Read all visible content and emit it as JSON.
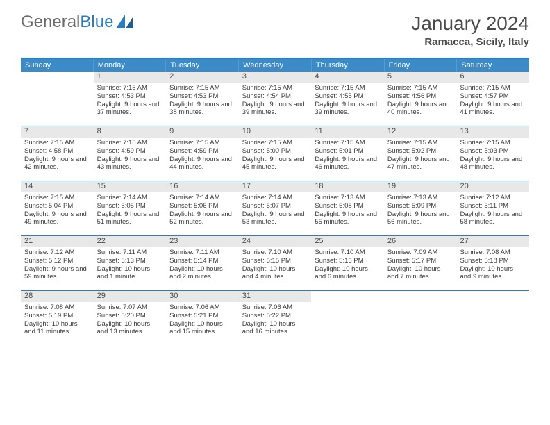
{
  "logo": {
    "text1": "General",
    "text2": "Blue"
  },
  "title": "January 2024",
  "location": "Ramacca, Sicily, Italy",
  "colors": {
    "header_band": "#3b8bc9",
    "week_divider": "#2b7bbf",
    "daynum_bg": "#e8e8e8",
    "text": "#3a3a3a",
    "title": "#4a4a4a",
    "logo_gray": "#6a6a6a",
    "logo_blue": "#2b7bbf",
    "background": "#ffffff"
  },
  "typography": {
    "month_title_pt": 28,
    "location_pt": 15,
    "weekday_pt": 11,
    "daynum_pt": 11,
    "body_pt": 9.5,
    "font_family": "Arial"
  },
  "weekdays": [
    "Sunday",
    "Monday",
    "Tuesday",
    "Wednesday",
    "Thursday",
    "Friday",
    "Saturday"
  ],
  "weeks": [
    [
      {
        "n": "",
        "sr": "",
        "ss": "",
        "dl": "",
        "empty": true
      },
      {
        "n": "1",
        "sr": "Sunrise: 7:15 AM",
        "ss": "Sunset: 4:53 PM",
        "dl": "Daylight: 9 hours and 37 minutes."
      },
      {
        "n": "2",
        "sr": "Sunrise: 7:15 AM",
        "ss": "Sunset: 4:53 PM",
        "dl": "Daylight: 9 hours and 38 minutes."
      },
      {
        "n": "3",
        "sr": "Sunrise: 7:15 AM",
        "ss": "Sunset: 4:54 PM",
        "dl": "Daylight: 9 hours and 39 minutes."
      },
      {
        "n": "4",
        "sr": "Sunrise: 7:15 AM",
        "ss": "Sunset: 4:55 PM",
        "dl": "Daylight: 9 hours and 39 minutes."
      },
      {
        "n": "5",
        "sr": "Sunrise: 7:15 AM",
        "ss": "Sunset: 4:56 PM",
        "dl": "Daylight: 9 hours and 40 minutes."
      },
      {
        "n": "6",
        "sr": "Sunrise: 7:15 AM",
        "ss": "Sunset: 4:57 PM",
        "dl": "Daylight: 9 hours and 41 minutes."
      }
    ],
    [
      {
        "n": "7",
        "sr": "Sunrise: 7:15 AM",
        "ss": "Sunset: 4:58 PM",
        "dl": "Daylight: 9 hours and 42 minutes."
      },
      {
        "n": "8",
        "sr": "Sunrise: 7:15 AM",
        "ss": "Sunset: 4:59 PM",
        "dl": "Daylight: 9 hours and 43 minutes."
      },
      {
        "n": "9",
        "sr": "Sunrise: 7:15 AM",
        "ss": "Sunset: 4:59 PM",
        "dl": "Daylight: 9 hours and 44 minutes."
      },
      {
        "n": "10",
        "sr": "Sunrise: 7:15 AM",
        "ss": "Sunset: 5:00 PM",
        "dl": "Daylight: 9 hours and 45 minutes."
      },
      {
        "n": "11",
        "sr": "Sunrise: 7:15 AM",
        "ss": "Sunset: 5:01 PM",
        "dl": "Daylight: 9 hours and 46 minutes."
      },
      {
        "n": "12",
        "sr": "Sunrise: 7:15 AM",
        "ss": "Sunset: 5:02 PM",
        "dl": "Daylight: 9 hours and 47 minutes."
      },
      {
        "n": "13",
        "sr": "Sunrise: 7:15 AM",
        "ss": "Sunset: 5:03 PM",
        "dl": "Daylight: 9 hours and 48 minutes."
      }
    ],
    [
      {
        "n": "14",
        "sr": "Sunrise: 7:15 AM",
        "ss": "Sunset: 5:04 PM",
        "dl": "Daylight: 9 hours and 49 minutes."
      },
      {
        "n": "15",
        "sr": "Sunrise: 7:14 AM",
        "ss": "Sunset: 5:05 PM",
        "dl": "Daylight: 9 hours and 51 minutes."
      },
      {
        "n": "16",
        "sr": "Sunrise: 7:14 AM",
        "ss": "Sunset: 5:06 PM",
        "dl": "Daylight: 9 hours and 52 minutes."
      },
      {
        "n": "17",
        "sr": "Sunrise: 7:14 AM",
        "ss": "Sunset: 5:07 PM",
        "dl": "Daylight: 9 hours and 53 minutes."
      },
      {
        "n": "18",
        "sr": "Sunrise: 7:13 AM",
        "ss": "Sunset: 5:08 PM",
        "dl": "Daylight: 9 hours and 55 minutes."
      },
      {
        "n": "19",
        "sr": "Sunrise: 7:13 AM",
        "ss": "Sunset: 5:09 PM",
        "dl": "Daylight: 9 hours and 56 minutes."
      },
      {
        "n": "20",
        "sr": "Sunrise: 7:12 AM",
        "ss": "Sunset: 5:11 PM",
        "dl": "Daylight: 9 hours and 58 minutes."
      }
    ],
    [
      {
        "n": "21",
        "sr": "Sunrise: 7:12 AM",
        "ss": "Sunset: 5:12 PM",
        "dl": "Daylight: 9 hours and 59 minutes."
      },
      {
        "n": "22",
        "sr": "Sunrise: 7:11 AM",
        "ss": "Sunset: 5:13 PM",
        "dl": "Daylight: 10 hours and 1 minute."
      },
      {
        "n": "23",
        "sr": "Sunrise: 7:11 AM",
        "ss": "Sunset: 5:14 PM",
        "dl": "Daylight: 10 hours and 2 minutes."
      },
      {
        "n": "24",
        "sr": "Sunrise: 7:10 AM",
        "ss": "Sunset: 5:15 PM",
        "dl": "Daylight: 10 hours and 4 minutes."
      },
      {
        "n": "25",
        "sr": "Sunrise: 7:10 AM",
        "ss": "Sunset: 5:16 PM",
        "dl": "Daylight: 10 hours and 6 minutes."
      },
      {
        "n": "26",
        "sr": "Sunrise: 7:09 AM",
        "ss": "Sunset: 5:17 PM",
        "dl": "Daylight: 10 hours and 7 minutes."
      },
      {
        "n": "27",
        "sr": "Sunrise: 7:08 AM",
        "ss": "Sunset: 5:18 PM",
        "dl": "Daylight: 10 hours and 9 minutes."
      }
    ],
    [
      {
        "n": "28",
        "sr": "Sunrise: 7:08 AM",
        "ss": "Sunset: 5:19 PM",
        "dl": "Daylight: 10 hours and 11 minutes."
      },
      {
        "n": "29",
        "sr": "Sunrise: 7:07 AM",
        "ss": "Sunset: 5:20 PM",
        "dl": "Daylight: 10 hours and 13 minutes."
      },
      {
        "n": "30",
        "sr": "Sunrise: 7:06 AM",
        "ss": "Sunset: 5:21 PM",
        "dl": "Daylight: 10 hours and 15 minutes."
      },
      {
        "n": "31",
        "sr": "Sunrise: 7:06 AM",
        "ss": "Sunset: 5:22 PM",
        "dl": "Daylight: 10 hours and 16 minutes."
      },
      {
        "n": "",
        "sr": "",
        "ss": "",
        "dl": "",
        "empty": true
      },
      {
        "n": "",
        "sr": "",
        "ss": "",
        "dl": "",
        "empty": true
      },
      {
        "n": "",
        "sr": "",
        "ss": "",
        "dl": "",
        "empty": true
      }
    ]
  ]
}
